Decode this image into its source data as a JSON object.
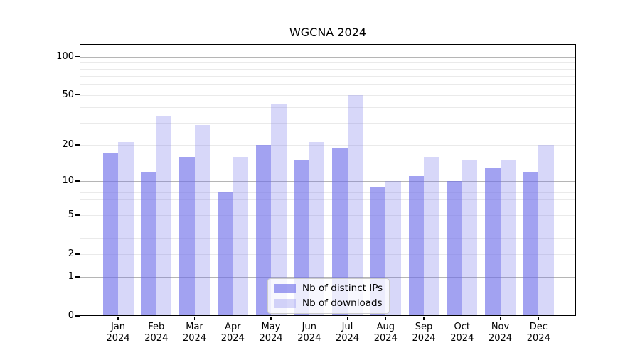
{
  "chart_data": {
    "type": "bar",
    "title": "WGCNA 2024",
    "scale": "log1p",
    "grid": true,
    "legend_position": "lower center inside plot",
    "categories": [
      "Jan",
      "Feb",
      "Mar",
      "Apr",
      "May",
      "Jun",
      "Jul",
      "Aug",
      "Sep",
      "Oct",
      "Nov",
      "Dec"
    ],
    "year_label": "2024",
    "series": [
      {
        "key": "ips",
        "name": "Nb of distinct IPs",
        "color": "rgba(110,110,233,0.64)",
        "values": [
          17,
          12,
          16,
          8,
          20,
          15,
          19,
          9,
          11,
          10,
          13,
          12
        ]
      },
      {
        "key": "downloads",
        "name": "Nb of downloads",
        "color": "rgba(110,110,233,0.28)",
        "values": [
          21,
          34,
          29,
          16,
          42,
          21,
          50,
          10,
          16,
          15,
          15,
          20
        ]
      }
    ],
    "y_ticks": [
      0,
      1,
      2,
      5,
      10,
      20,
      50,
      100
    ],
    "major_gridlines": [
      1,
      10,
      100
    ],
    "minor_gridlines": [
      2,
      3,
      4,
      5,
      6,
      7,
      8,
      9,
      20,
      30,
      40,
      50,
      60,
      70,
      80,
      90
    ],
    "ylim": [
      0,
      125
    ]
  },
  "colors": {
    "ips_bar_blended": "#a2a2f0",
    "downloads_bar_blended": "#d6d6f8",
    "grid_major": "#b5b5b5",
    "grid_minor": "#eaeaea",
    "axis": "#000000",
    "legend_border": "#cccccc"
  }
}
